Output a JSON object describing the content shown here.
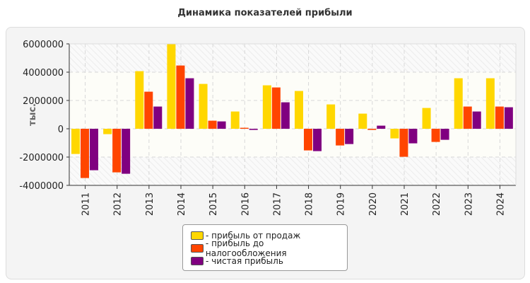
{
  "chart_data": {
    "type": "bar",
    "title": "Динамика показателей прибыли",
    "ylabel": "тыс.",
    "xlabel": "",
    "ylim": [
      -4000000,
      6000000
    ],
    "yticks": [
      -4000000,
      -2000000,
      0,
      2000000,
      4000000,
      6000000
    ],
    "ytick_labels": [
      "-4000000",
      "-2000000",
      "0",
      "2000000",
      "4000000",
      "6000000"
    ],
    "grid": true,
    "legend_position": "bottom",
    "categories": [
      "2011",
      "2012",
      "2013",
      "2014",
      "2015",
      "2016",
      "2017",
      "2018",
      "2019",
      "2020",
      "2021",
      "2022",
      "2023",
      "2024"
    ],
    "series": [
      {
        "name": "- прибыль от продаж",
        "color": "#FFD700",
        "values": [
          -1780000,
          -380000,
          4070000,
          6000000,
          3170000,
          1220000,
          3070000,
          2670000,
          1720000,
          1070000,
          -680000,
          1470000,
          3570000,
          3570000
        ]
      },
      {
        "name": "- прибыль до налогообложения",
        "color": "#FF4500",
        "values": [
          -3480000,
          -3080000,
          2620000,
          4470000,
          570000,
          70000,
          2920000,
          -1530000,
          -1180000,
          -80000,
          -1980000,
          -930000,
          1570000,
          1570000
        ]
      },
      {
        "name": "- чистая прибыль",
        "color": "#800080",
        "values": [
          -2930000,
          -3180000,
          1570000,
          3570000,
          520000,
          -80000,
          1870000,
          -1580000,
          -1080000,
          220000,
          -1030000,
          -780000,
          1220000,
          1520000
        ]
      }
    ]
  }
}
